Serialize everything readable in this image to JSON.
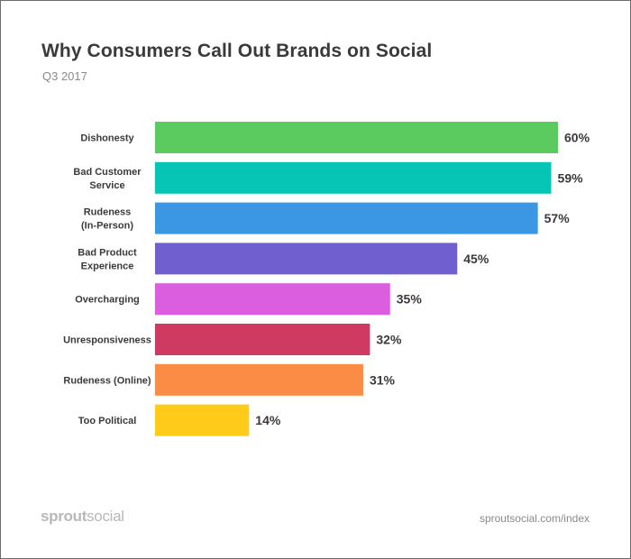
{
  "header": {
    "title": "Why Consumers Call Out Brands on Social",
    "subtitle": "Q3 2017"
  },
  "footer": {
    "logo_part1": "sprout",
    "logo_part2": "social",
    "url": "sproutsocial.com/index"
  },
  "chart_data": {
    "type": "bar",
    "orientation": "horizontal",
    "title": "Why Consumers Call Out Brands on Social",
    "subtitle": "Q3 2017",
    "categories": [
      [
        "Dishonesty"
      ],
      [
        "Bad Customer",
        "Service"
      ],
      [
        "Rudeness",
        "(In-Person)"
      ],
      [
        "Bad Product",
        "Experience"
      ],
      [
        "Overcharging"
      ],
      [
        "Unresponsiveness"
      ],
      [
        "Rudeness (Online)"
      ],
      [
        "Too Political"
      ]
    ],
    "values": [
      60,
      59,
      57,
      45,
      35,
      32,
      31,
      14
    ],
    "value_labels": [
      "60%",
      "59%",
      "57%",
      "45%",
      "35%",
      "32%",
      "31%",
      "14%"
    ],
    "colors": [
      "#5ccb5f",
      "#07c5b4",
      "#3b97e3",
      "#6f5fcf",
      "#db5ede",
      "#cf3a63",
      "#fb8c45",
      "#fecb1a"
    ],
    "xlim": [
      0,
      60
    ],
    "grid": false,
    "legend": "none"
  }
}
